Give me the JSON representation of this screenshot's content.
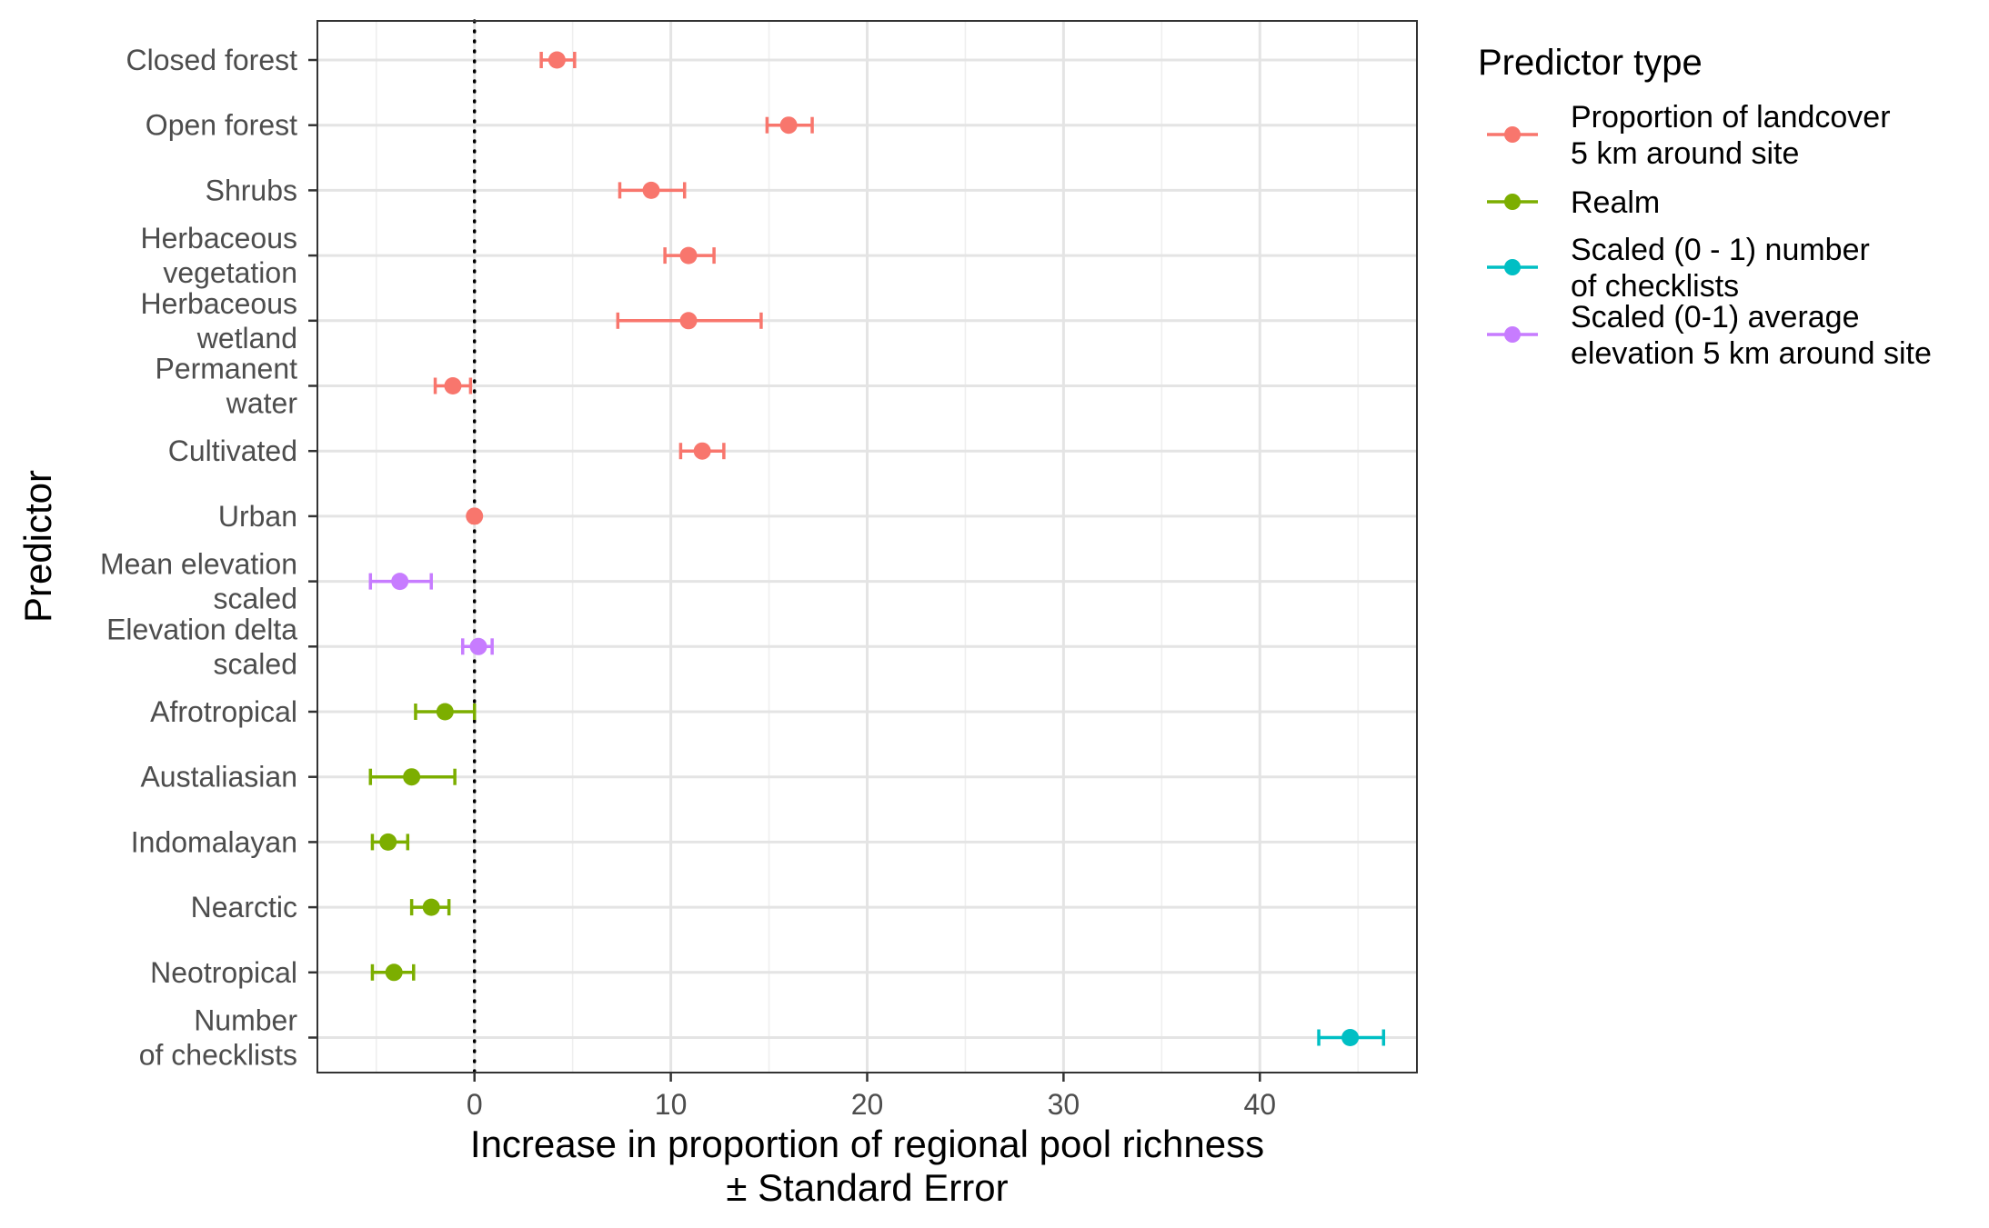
{
  "chart_data": {
    "type": "scatter",
    "subtype": "dot-and-errorbar",
    "orientation": "horizontal",
    "title": "",
    "xlabel": [
      "Increase in proportion of regional pool richness",
      "± Standard Error"
    ],
    "ylabel": "Predictor",
    "xlim": [
      -8,
      48
    ],
    "x_ticks": [
      0,
      10,
      20,
      30,
      40
    ],
    "grid": true,
    "reference_line": {
      "x": 0,
      "style": "dotted"
    },
    "legend": {
      "title": "Predictor type",
      "placement": "right",
      "items": [
        {
          "label": [
            "Proportion of landcover",
            "5 km around site"
          ],
          "color": "#F8766D"
        },
        {
          "label": [
            "Realm"
          ],
          "color": "#7CAE00"
        },
        {
          "label": [
            "Scaled (0 - 1) number",
            "of checklists"
          ],
          "color": "#00BFC4"
        },
        {
          "label": [
            "Scaled (0-1) average",
            "elevation 5 km around site"
          ],
          "color": "#C77CFF"
        }
      ]
    },
    "points": [
      {
        "label": [
          "Closed forest"
        ],
        "type": "Proportion of landcover 5 km around site",
        "color": "#F8766D",
        "estimate": 4.2,
        "lower": 3.4,
        "upper": 5.1
      },
      {
        "label": [
          "Open forest"
        ],
        "type": "Proportion of landcover 5 km around site",
        "color": "#F8766D",
        "estimate": 16.0,
        "lower": 14.9,
        "upper": 17.2
      },
      {
        "label": [
          "Shrubs"
        ],
        "type": "Proportion of landcover 5 km around site",
        "color": "#F8766D",
        "estimate": 9.0,
        "lower": 7.4,
        "upper": 10.7
      },
      {
        "label": [
          "Herbaceous",
          "vegetation"
        ],
        "type": "Proportion of landcover 5 km around site",
        "color": "#F8766D",
        "estimate": 10.9,
        "lower": 9.7,
        "upper": 12.2
      },
      {
        "label": [
          "Herbaceous",
          "wetland"
        ],
        "type": "Proportion of landcover 5 km around site",
        "color": "#F8766D",
        "estimate": 10.9,
        "lower": 7.3,
        "upper": 14.6
      },
      {
        "label": [
          "Permanent",
          "water"
        ],
        "type": "Proportion of landcover 5 km around site",
        "color": "#F8766D",
        "estimate": -1.1,
        "lower": -2.0,
        "upper": -0.2
      },
      {
        "label": [
          "Cultivated"
        ],
        "type": "Proportion of landcover 5 km around site",
        "color": "#F8766D",
        "estimate": 11.6,
        "lower": 10.5,
        "upper": 12.7
      },
      {
        "label": [
          "Urban"
        ],
        "type": "Proportion of landcover 5 km around site",
        "color": "#F8766D",
        "estimate": 0.0,
        "lower": -0.1,
        "upper": 0.1
      },
      {
        "label": [
          "Mean elevation",
          "scaled"
        ],
        "type": "Scaled (0-1) average elevation 5 km around site",
        "color": "#C77CFF",
        "estimate": -3.8,
        "lower": -5.3,
        "upper": -2.2
      },
      {
        "label": [
          "Elevation delta",
          "scaled"
        ],
        "type": "Scaled (0-1) average elevation 5 km around site",
        "color": "#C77CFF",
        "estimate": 0.2,
        "lower": -0.6,
        "upper": 0.9
      },
      {
        "label": [
          "Afrotropical"
        ],
        "type": "Realm",
        "color": "#7CAE00",
        "estimate": -1.5,
        "lower": -3.0,
        "upper": 0.0
      },
      {
        "label": [
          "Austaliasian"
        ],
        "type": "Realm",
        "color": "#7CAE00",
        "estimate": -3.2,
        "lower": -5.3,
        "upper": -1.0
      },
      {
        "label": [
          "Indomalayan"
        ],
        "type": "Realm",
        "color": "#7CAE00",
        "estimate": -4.4,
        "lower": -5.2,
        "upper": -3.4
      },
      {
        "label": [
          "Nearctic"
        ],
        "type": "Realm",
        "color": "#7CAE00",
        "estimate": -2.2,
        "lower": -3.2,
        "upper": -1.3
      },
      {
        "label": [
          "Neotropical"
        ],
        "type": "Realm",
        "color": "#7CAE00",
        "estimate": -4.1,
        "lower": -5.2,
        "upper": -3.1
      },
      {
        "label": [
          "Number",
          "of checklists"
        ],
        "type": "Scaled (0 - 1) number of checklists",
        "color": "#00BFC4",
        "estimate": 44.6,
        "lower": 43.0,
        "upper": 46.3
      }
    ]
  }
}
